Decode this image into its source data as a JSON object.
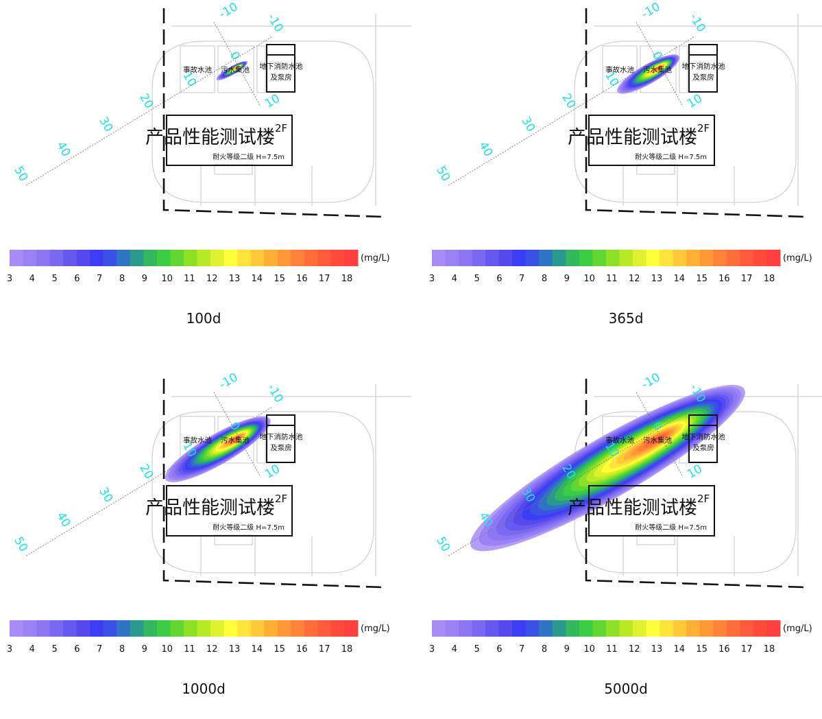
{
  "labels": {
    "room1": "事故水池",
    "room2": "污水集池",
    "room3_line1": "地下消防水池",
    "room3_line2": "及泵房",
    "building": "产品性能测试楼",
    "floor": "2F",
    "building_note": "耐火等级二级  H=7.5m"
  },
  "axis_long": [
    "-10",
    "0",
    "10",
    "20",
    "30",
    "40",
    "50"
  ],
  "axis_cross": [
    "-10",
    "10"
  ],
  "unit": "(mg/L)",
  "scale": [
    "3",
    "4",
    "5",
    "6",
    "7",
    "8",
    "9",
    "10",
    "11",
    "12",
    "13",
    "14",
    "15",
    "16",
    "17",
    "18"
  ],
  "palette": [
    "#a78cf6",
    "#9a82f4",
    "#8c76f2",
    "#7a68f0",
    "#6657ee",
    "#5548ec",
    "#3d3df6",
    "#3a52e6",
    "#2f74c2",
    "#2a9a8e",
    "#33b85e",
    "#3ccc44",
    "#62d631",
    "#8ee027",
    "#b7ea25",
    "#dff02e",
    "#ffff3a",
    "#ffe23a",
    "#ffc838",
    "#ffae36",
    "#ff9736",
    "#ff8238",
    "#ff6d3a",
    "#ff5a3b",
    "#ff4a3c",
    "#ff3e3e"
  ],
  "panels": [
    {
      "caption": "100d",
      "plume": {
        "len": 26,
        "wid": 6
      }
    },
    {
      "caption": "365d",
      "plume": {
        "len": 52,
        "wid": 14
      }
    },
    {
      "caption": "1000d",
      "plume": {
        "len": 88,
        "wid": 22
      }
    },
    {
      "caption": "5000d",
      "plume": {
        "len": 230,
        "wid": 44
      }
    }
  ]
}
